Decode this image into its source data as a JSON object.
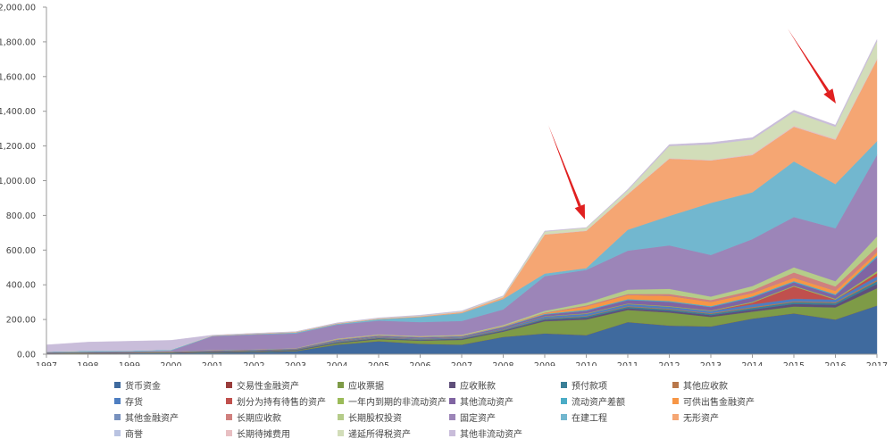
{
  "chart_data": {
    "type": "area",
    "stacked": true,
    "title": "",
    "xlabel": "",
    "ylabel": "",
    "ylim": [
      0,
      2000
    ],
    "y_ticks": [
      "0.00",
      "200.00",
      "400.00",
      "600.00",
      "800.00",
      "1,000.00",
      "1,200.00",
      "1,400.00",
      "1,600.00",
      "1,800.00",
      "2,000.00"
    ],
    "grid": false,
    "legend_position": "bottom",
    "x": [
      "1997",
      "1998",
      "1999",
      "2000",
      "2001",
      "2002",
      "2003",
      "2004",
      "2005",
      "2006",
      "2007",
      "2008",
      "2009",
      "2010",
      "2011",
      "2012",
      "2013",
      "2014",
      "2015",
      "2016",
      "2017"
    ],
    "series": [
      {
        "name": "货币资金",
        "color": "#3F6A9E",
        "values": [
          3,
          5,
          6,
          7,
          10,
          12,
          18,
          55,
          75,
          60,
          55,
          100,
          120,
          110,
          185,
          165,
          160,
          205,
          235,
          200,
          280
        ]
      },
      {
        "name": "交易性金融资产",
        "color": "#9A3D3B",
        "values": [
          0,
          0,
          0,
          0,
          0,
          0,
          0,
          0,
          0,
          0,
          0,
          0,
          0,
          0,
          0,
          0,
          0,
          0,
          0,
          0,
          0
        ]
      },
      {
        "name": "应收票据",
        "color": "#7E9B47",
        "values": [
          1,
          1,
          1,
          1,
          2,
          2,
          3,
          8,
          12,
          18,
          28,
          30,
          70,
          90,
          70,
          75,
          55,
          40,
          40,
          70,
          100
        ]
      },
      {
        "name": "应收账款",
        "color": "#5F4F7A",
        "values": [
          2,
          2,
          2,
          2,
          2,
          3,
          3,
          4,
          4,
          4,
          5,
          5,
          8,
          10,
          10,
          10,
          10,
          12,
          15,
          15,
          25
        ]
      },
      {
        "name": "预付款项",
        "color": "#3A7F97",
        "values": [
          1,
          1,
          1,
          1,
          1,
          2,
          2,
          3,
          3,
          3,
          3,
          4,
          6,
          8,
          8,
          8,
          8,
          10,
          10,
          10,
          15
        ]
      },
      {
        "name": "其他应收款",
        "color": "#B8774A",
        "values": [
          1,
          1,
          1,
          1,
          1,
          1,
          1,
          2,
          2,
          2,
          2,
          3,
          3,
          3,
          4,
          4,
          4,
          5,
          5,
          5,
          8
        ]
      },
      {
        "name": "存货",
        "color": "#4E7EC1",
        "values": [
          1,
          1,
          1,
          1,
          2,
          2,
          2,
          4,
          4,
          4,
          4,
          5,
          10,
          12,
          12,
          12,
          12,
          15,
          15,
          15,
          20
        ]
      },
      {
        "name": "划分为持有待售的资产",
        "color": "#C0504D",
        "values": [
          0,
          0,
          0,
          0,
          0,
          0,
          0,
          0,
          0,
          0,
          0,
          0,
          0,
          0,
          0,
          0,
          0,
          10,
          70,
          0,
          20
        ]
      },
      {
        "name": "一年内到期的非流动资产",
        "color": "#9BBB59",
        "values": [
          0,
          0,
          0,
          0,
          0,
          0,
          0,
          1,
          1,
          1,
          1,
          1,
          2,
          3,
          3,
          3,
          3,
          5,
          5,
          5,
          10
        ]
      },
      {
        "name": "其他流动资产",
        "color": "#8064A2",
        "values": [
          2,
          2,
          2,
          2,
          3,
          3,
          3,
          5,
          5,
          5,
          5,
          8,
          10,
          15,
          20,
          25,
          20,
          25,
          20,
          20,
          80
        ]
      },
      {
        "name": "流动资产差额",
        "color": "#4BACC6",
        "values": [
          1,
          1,
          1,
          1,
          1,
          1,
          1,
          2,
          2,
          2,
          2,
          3,
          4,
          5,
          5,
          5,
          5,
          6,
          6,
          6,
          10
        ]
      },
      {
        "name": "可供出售金融资产",
        "color": "#F79646",
        "values": [
          0,
          0,
          0,
          0,
          1,
          1,
          1,
          2,
          2,
          2,
          2,
          3,
          5,
          20,
          25,
          30,
          25,
          20,
          20,
          20,
          20
        ]
      },
      {
        "name": "其他金融资产",
        "color": "#7891BE",
        "values": [
          0,
          0,
          0,
          0,
          0,
          0,
          0,
          0,
          0,
          0,
          0,
          0,
          0,
          0,
          0,
          0,
          0,
          0,
          0,
          0,
          0
        ]
      },
      {
        "name": "长期应收款",
        "color": "#D0807E",
        "values": [
          0,
          0,
          0,
          0,
          0,
          0,
          0,
          1,
          1,
          1,
          1,
          1,
          2,
          5,
          5,
          10,
          10,
          15,
          30,
          25,
          30
        ]
      },
      {
        "name": "长期股权投资",
        "color": "#B5CC89",
        "values": [
          0,
          0,
          0,
          0,
          1,
          1,
          1,
          3,
          3,
          3,
          4,
          5,
          10,
          15,
          25,
          30,
          20,
          25,
          30,
          30,
          60
        ]
      },
      {
        "name": "固定资产",
        "color": "#9C85B8",
        "values": [
          1,
          1,
          1,
          5,
          80,
          85,
          85,
          80,
          80,
          80,
          80,
          90,
          200,
          190,
          225,
          250,
          240,
          270,
          290,
          305,
          470
        ]
      },
      {
        "name": "在建工程",
        "color": "#72B7CF",
        "values": [
          3,
          5,
          5,
          5,
          2,
          3,
          5,
          5,
          8,
          30,
          45,
          60,
          15,
          10,
          120,
          170,
          300,
          270,
          320,
          255,
          80
        ]
      },
      {
        "name": "无形资产",
        "color": "#F5A673",
        "values": [
          0,
          0,
          0,
          0,
          2,
          3,
          3,
          3,
          3,
          4,
          6,
          10,
          225,
          215,
          205,
          330,
          245,
          215,
          200,
          255,
          470
        ]
      },
      {
        "name": "商誉",
        "color": "#B9C3E1",
        "values": [
          0,
          0,
          0,
          0,
          0,
          0,
          0,
          0,
          0,
          0,
          0,
          0,
          0,
          0,
          0,
          0,
          0,
          0,
          0,
          0,
          0
        ]
      },
      {
        "name": "长期待摊费用",
        "color": "#E8BFC2",
        "values": [
          0,
          0,
          0,
          0,
          0,
          0,
          0,
          0,
          0,
          1,
          1,
          1,
          2,
          2,
          3,
          3,
          3,
          5,
          5,
          5,
          5
        ]
      },
      {
        "name": "递延所得税资产",
        "color": "#D2DDB9",
        "values": [
          0,
          0,
          0,
          0,
          1,
          1,
          1,
          1,
          2,
          2,
          3,
          5,
          15,
          15,
          20,
          70,
          90,
          85,
          80,
          70,
          100
        ]
      },
      {
        "name": "其他非流动资产",
        "color": "#C9BDDA",
        "values": [
          38,
          50,
          54,
          54,
          1,
          1,
          1,
          2,
          3,
          3,
          3,
          3,
          3,
          2,
          5,
          8,
          10,
          10,
          10,
          10,
          10
        ]
      }
    ],
    "annotations": [
      {
        "type": "arrow",
        "color": "#E02020",
        "points_to_year": "2010",
        "label": ""
      },
      {
        "type": "arrow",
        "color": "#E02020",
        "points_to_year": "2016",
        "label": ""
      }
    ]
  },
  "legend": {
    "items": [
      {
        "label": "货币资金",
        "color": "#3F6A9E"
      },
      {
        "label": "交易性金融资产",
        "color": "#9A3D3B"
      },
      {
        "label": "应收票据",
        "color": "#7E9B47"
      },
      {
        "label": "应收账款",
        "color": "#5F4F7A"
      },
      {
        "label": "预付款项",
        "color": "#3A7F97"
      },
      {
        "label": "其他应收款",
        "color": "#B8774A"
      },
      {
        "label": "存货",
        "color": "#4E7EC1"
      },
      {
        "label": "划分为持有待售的资产",
        "color": "#C0504D"
      },
      {
        "label": "一年内到期的非流动资产",
        "color": "#9BBB59"
      },
      {
        "label": "其他流动资产",
        "color": "#8064A2"
      },
      {
        "label": "流动资产差额",
        "color": "#4BACC6"
      },
      {
        "label": "可供出售金融资产",
        "color": "#F79646"
      },
      {
        "label": "其他金融资产",
        "color": "#7891BE"
      },
      {
        "label": "长期应收款",
        "color": "#D0807E"
      },
      {
        "label": "长期股权投资",
        "color": "#B5CC89"
      },
      {
        "label": "固定资产",
        "color": "#9C85B8"
      },
      {
        "label": "在建工程",
        "color": "#72B7CF"
      },
      {
        "label": "无形资产",
        "color": "#F5A673"
      },
      {
        "label": "商誉",
        "color": "#B9C3E1"
      },
      {
        "label": "长期待摊费用",
        "color": "#E8BFC2"
      },
      {
        "label": "递延所得税资产",
        "color": "#D2DDB9"
      },
      {
        "label": "其他非流动资产",
        "color": "#C9BDDA"
      }
    ]
  }
}
